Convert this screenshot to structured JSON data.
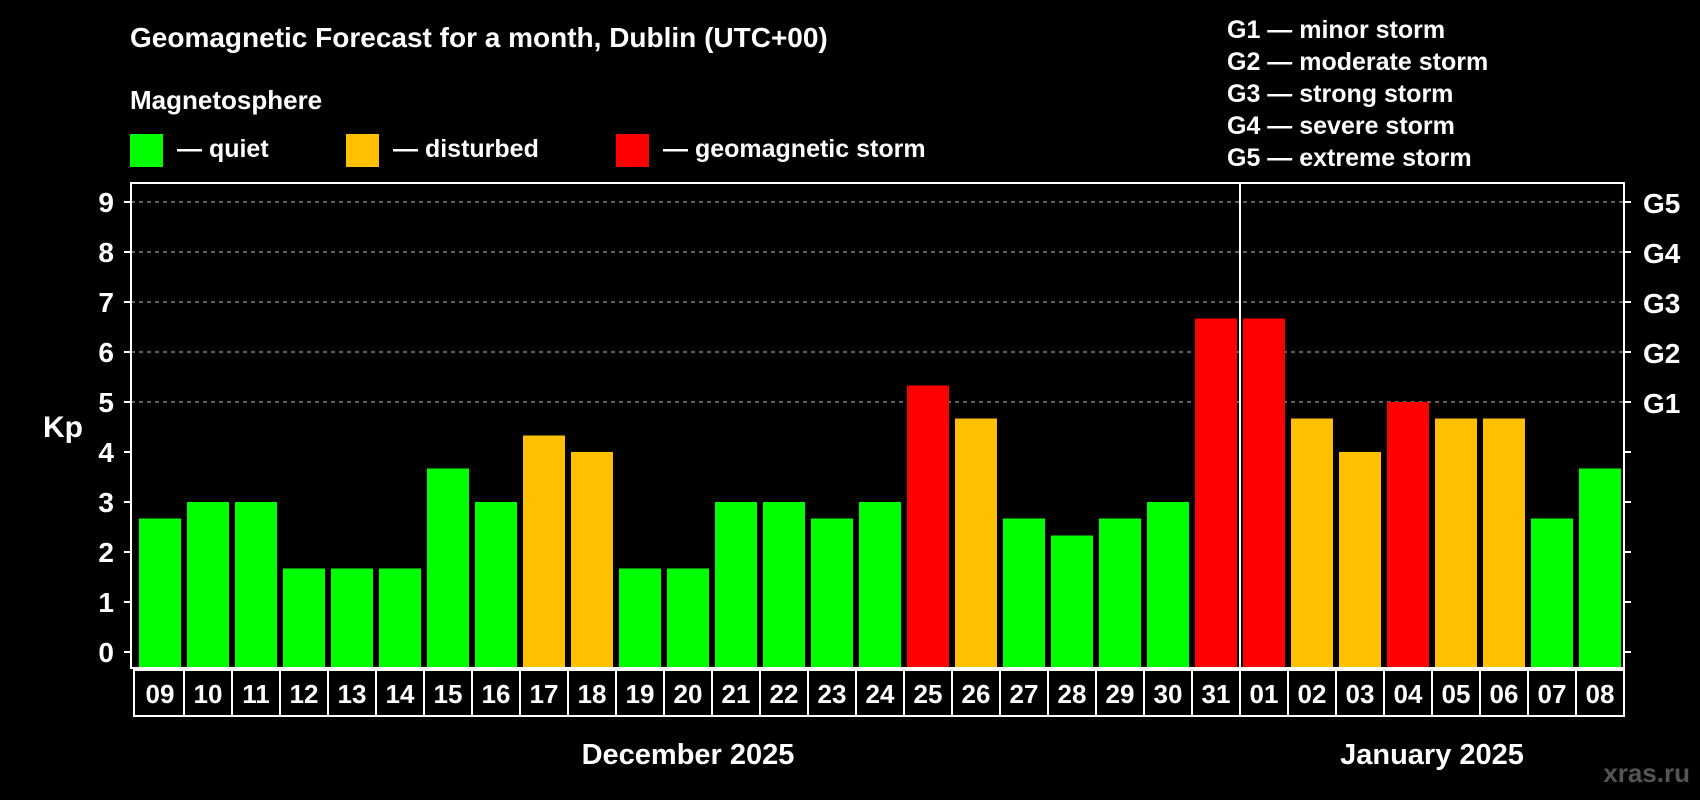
{
  "chart_data": {
    "type": "bar",
    "title": "Geomagnetic Forecast for a month, Dublin (UTC+00)",
    "legend_title": "Magnetosphere",
    "legend": [
      {
        "label": "— quiet",
        "color": "#00ff00"
      },
      {
        "label": "— disturbed",
        "color": "#ffc000"
      },
      {
        "label": "— geomagnetic storm",
        "color": "#ff0000"
      }
    ],
    "storm_scale": [
      "G1 — minor storm",
      "G2 — moderate storm",
      "G3 — strong storm",
      "G4 — severe storm",
      "G5 — extreme storm"
    ],
    "ylabel": "Kp",
    "ylim": [
      0,
      9
    ],
    "y_ticks": [
      "0",
      "1",
      "2",
      "3",
      "4",
      "5",
      "6",
      "7",
      "8",
      "9"
    ],
    "right_ticks": [
      {
        "label": "G1",
        "kp": 5
      },
      {
        "label": "G2",
        "kp": 6
      },
      {
        "label": "G3",
        "kp": 7
      },
      {
        "label": "G4",
        "kp": 8
      },
      {
        "label": "G5",
        "kp": 9
      }
    ],
    "grid": "dashed horizontal at Kp 5-9",
    "categories": [
      "09",
      "10",
      "11",
      "12",
      "13",
      "14",
      "15",
      "16",
      "17",
      "18",
      "19",
      "20",
      "21",
      "22",
      "23",
      "24",
      "25",
      "26",
      "27",
      "28",
      "29",
      "30",
      "31",
      "01",
      "02",
      "03",
      "04",
      "05",
      "06",
      "07",
      "08"
    ],
    "values": [
      2.67,
      3.0,
      3.0,
      1.67,
      1.67,
      1.67,
      3.67,
      3.0,
      4.33,
      4.0,
      1.67,
      1.67,
      3.0,
      3.0,
      2.67,
      3.0,
      5.33,
      4.67,
      2.67,
      2.33,
      2.67,
      3.0,
      6.67,
      6.67,
      4.67,
      4.0,
      5.0,
      4.67,
      4.67,
      2.67,
      3.67
    ],
    "levels": [
      "quiet",
      "quiet",
      "quiet",
      "quiet",
      "quiet",
      "quiet",
      "quiet",
      "quiet",
      "disturbed",
      "disturbed",
      "quiet",
      "quiet",
      "quiet",
      "quiet",
      "quiet",
      "quiet",
      "storm",
      "disturbed",
      "quiet",
      "quiet",
      "quiet",
      "quiet",
      "storm",
      "storm",
      "disturbed",
      "disturbed",
      "storm",
      "disturbed",
      "disturbed",
      "quiet",
      "quiet"
    ],
    "level_colors": {
      "quiet": "#00ff00",
      "disturbed": "#ffc000",
      "storm": "#ff0000"
    },
    "month_labels": [
      {
        "label": "December 2025",
        "first_index": 0,
        "last_index": 22
      },
      {
        "label": "January 2025",
        "first_index": 23,
        "last_index": 30
      }
    ],
    "watermark": "xras.ru"
  }
}
